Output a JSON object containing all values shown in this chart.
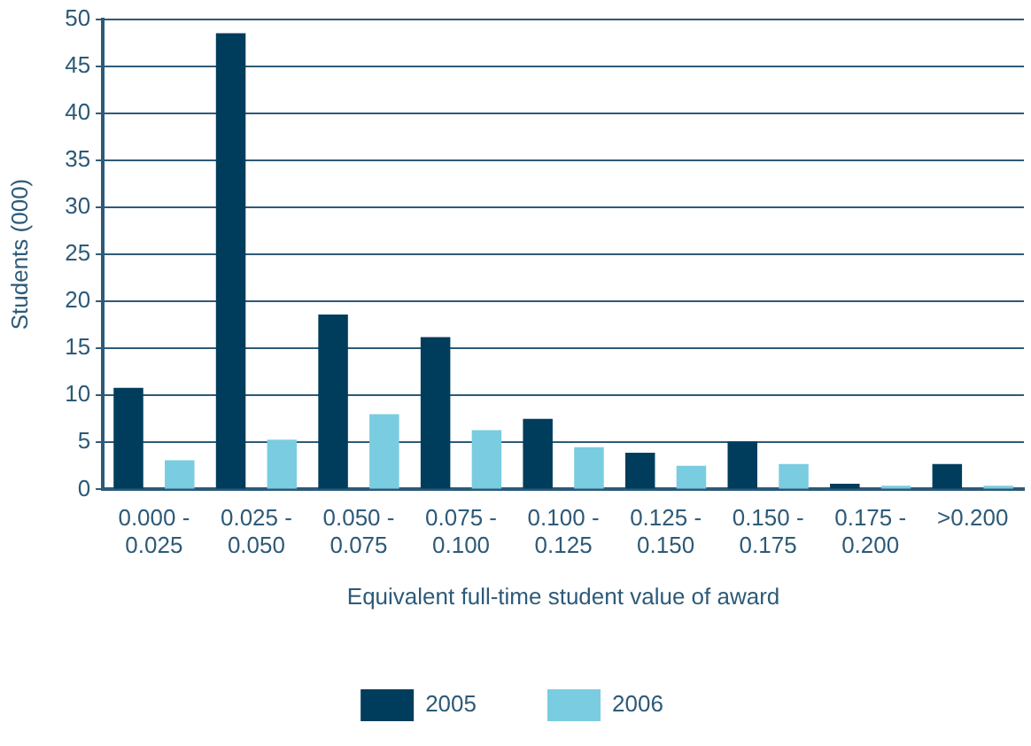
{
  "chart_data": {
    "type": "bar",
    "xlabel": "Equivalent full-time student value of award",
    "ylabel": "Students (000)",
    "categories": [
      "0.000 - 0.025",
      "0.025 - 0.050",
      "0.050 - 0.075",
      "0.075 - 0.100",
      "0.100 - 0.125",
      "0.125 - 0.150",
      "0.150 - 0.175",
      "0.175 - 0.200",
      ">0.200"
    ],
    "series": [
      {
        "name": "2005",
        "color": "#003d5c",
        "values": [
          10.8,
          48.5,
          18.6,
          16.2,
          7.5,
          3.9,
          5.1,
          0.6,
          2.7
        ]
      },
      {
        "name": "2006",
        "color": "#7acce0",
        "values": [
          3.1,
          5.3,
          8.0,
          6.3,
          4.5,
          2.5,
          2.7,
          0.4,
          0.4
        ]
      }
    ],
    "ylim": [
      0,
      50
    ],
    "yticks": [
      0,
      5,
      10,
      15,
      20,
      25,
      30,
      35,
      40,
      45,
      50
    ],
    "grid": "y",
    "legend": "bottom"
  }
}
